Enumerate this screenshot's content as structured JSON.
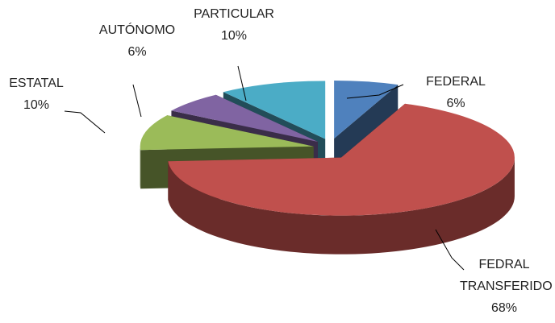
{
  "chart_data": {
    "type": "pie",
    "categories": [
      "FEDERAL",
      "FEDRAL TRANSFERIDO",
      "ESTATAL",
      "AUTÓNOMO",
      "PARTICULAR"
    ],
    "values": [
      6,
      68,
      10,
      6,
      10
    ],
    "value_labels": [
      "6%",
      "68%",
      "10%",
      "6%",
      "10%"
    ],
    "colors": [
      "#4f81bd",
      "#c0504d",
      "#9bbb59",
      "#8064a2",
      "#4bacc6"
    ]
  }
}
